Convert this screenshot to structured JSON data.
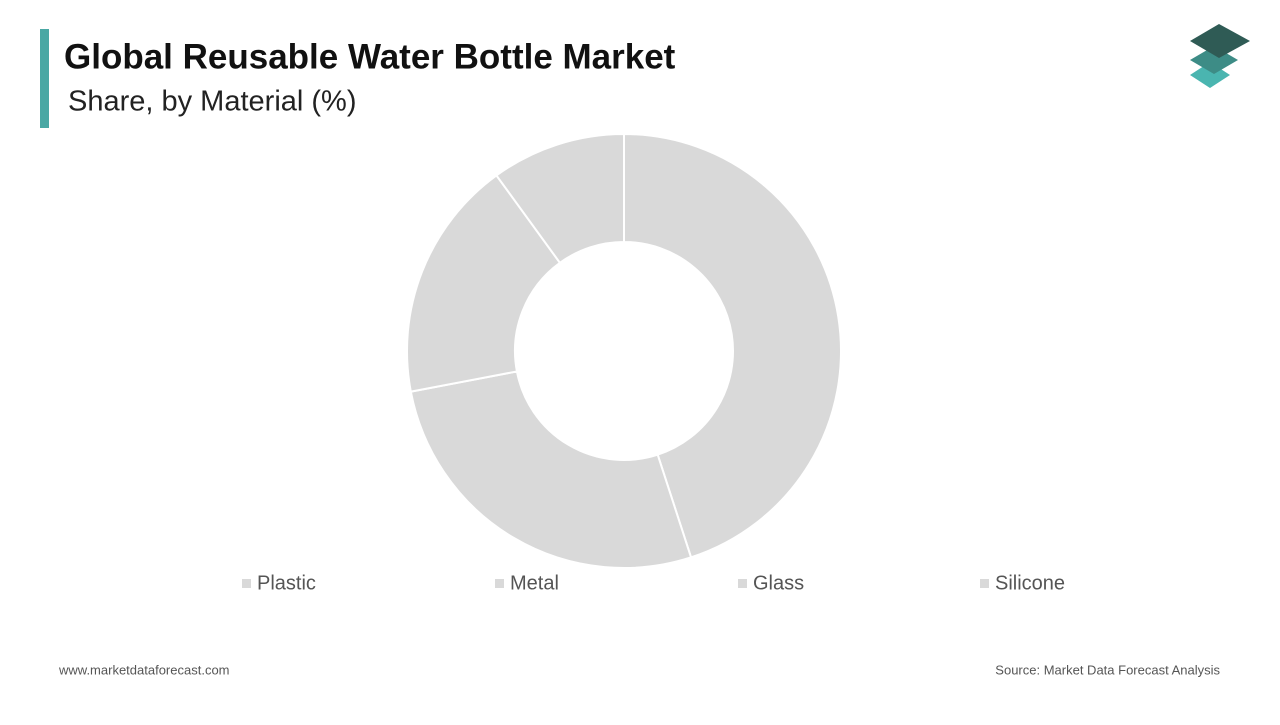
{
  "chart_data": {
    "type": "donut",
    "title": "Global Reusable Water Bottle Market",
    "subtitle": "Share, by Material (%)",
    "categories": [
      "Plastic",
      "Metal",
      "Glass",
      "Silicone"
    ],
    "values": [
      45,
      27,
      18,
      10
    ],
    "colors": [
      "#d9d9d9",
      "#d9d9d9",
      "#d9d9d9",
      "#d9d9d9"
    ]
  },
  "footer": {
    "website": "www.marketdataforecast.com",
    "source": "Source: Market Data Forecast Analysis"
  }
}
